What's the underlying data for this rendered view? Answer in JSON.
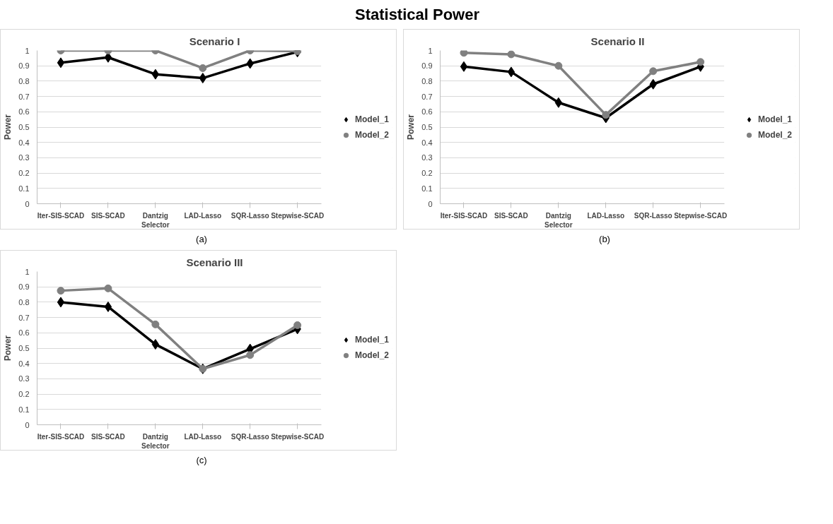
{
  "chart_data": [
    {
      "type": "line",
      "title": "Scenario I",
      "ylabel": "Power",
      "annotations": [
        "Statistical Power",
        "(a)"
      ],
      "categories": [
        "Iter-SIS-SCAD",
        "SIS-SCAD",
        "Dantzig Selector",
        "LAD-Lasso",
        "SQR-Lasso",
        "Stepwise-SCAD"
      ],
      "series": [
        {
          "name": "Model_1",
          "color": "#000000",
          "marker": "diamond",
          "values": [
            0.92,
            0.955,
            0.845,
            0.82,
            0.915,
            0.99
          ]
        },
        {
          "name": "Model_2",
          "color": "#808080",
          "marker": "circle",
          "values": [
            1.0,
            1.0,
            1.0,
            0.885,
            1.0,
            0.995
          ]
        }
      ],
      "ylim": [
        0,
        1
      ],
      "yticks": [
        0,
        0.1,
        0.2,
        0.3,
        0.4,
        0.5,
        0.6,
        0.7,
        0.8,
        0.9,
        1
      ],
      "grid": "y",
      "legend": "right"
    },
    {
      "type": "line",
      "title": "Scenario II",
      "ylabel": "Power",
      "annotations": [
        "(b)"
      ],
      "categories": [
        "Iter-SIS-SCAD",
        "SIS-SCAD",
        "Dantzig Selector",
        "LAD-Lasso",
        "SQR-Lasso",
        "Stepwise-SCAD"
      ],
      "series": [
        {
          "name": "Model_1",
          "color": "#000000",
          "marker": "diamond",
          "values": [
            0.895,
            0.86,
            0.66,
            0.56,
            0.78,
            0.895
          ]
        },
        {
          "name": "Model_2",
          "color": "#808080",
          "marker": "circle",
          "values": [
            0.985,
            0.975,
            0.9,
            0.58,
            0.865,
            0.925
          ]
        }
      ],
      "ylim": [
        0,
        1
      ],
      "yticks": [
        0,
        0.1,
        0.2,
        0.3,
        0.4,
        0.5,
        0.6,
        0.7,
        0.8,
        0.9,
        1
      ],
      "grid": "y",
      "legend": "right"
    },
    {
      "type": "line",
      "title": "Scenario III",
      "ylabel": "Power",
      "annotations": [
        "(c)"
      ],
      "categories": [
        "Iter-SIS-SCAD",
        "SIS-SCAD",
        "Dantzig Selector",
        "LAD-Lasso",
        "SQR-Lasso",
        "Stepwise-SCAD"
      ],
      "series": [
        {
          "name": "Model_1",
          "color": "#000000",
          "marker": "diamond",
          "values": [
            0.8,
            0.77,
            0.525,
            0.365,
            0.495,
            0.625
          ]
        },
        {
          "name": "Model_2",
          "color": "#808080",
          "marker": "circle",
          "values": [
            0.875,
            0.89,
            0.655,
            0.365,
            0.455,
            0.65
          ]
        }
      ],
      "ylim": [
        0,
        1
      ],
      "yticks": [
        0,
        0.1,
        0.2,
        0.3,
        0.4,
        0.5,
        0.6,
        0.7,
        0.8,
        0.9,
        1
      ],
      "grid": "y",
      "legend": "right"
    }
  ]
}
